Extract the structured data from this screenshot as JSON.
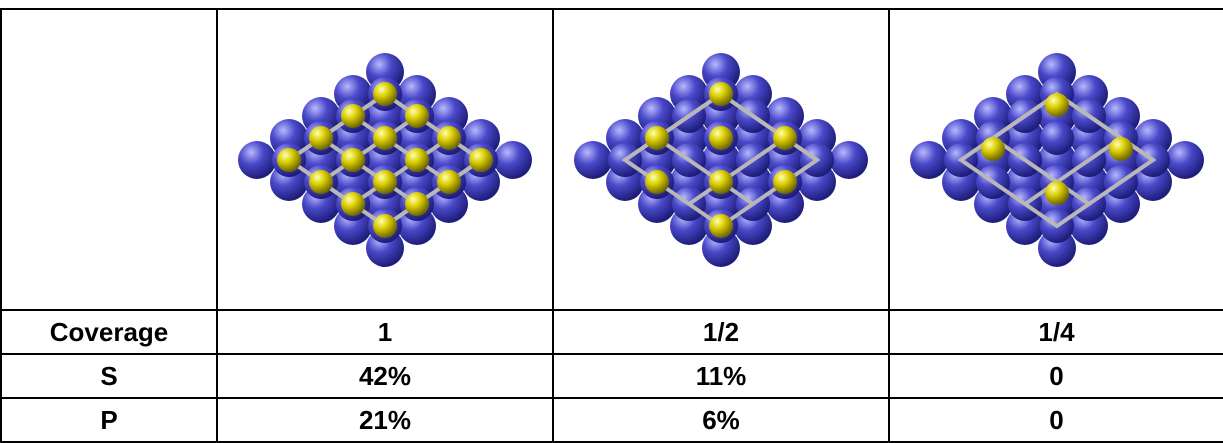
{
  "table": {
    "coverage_label": "Coverage",
    "coverages": [
      "1",
      "1/2",
      "1/4"
    ],
    "rows": [
      {
        "label": "S",
        "values": [
          "42%",
          "11%",
          "0"
        ]
      },
      {
        "label": "P",
        "values": [
          "21%",
          "6%",
          "0"
        ]
      }
    ]
  },
  "models": [
    {
      "coverage": "1",
      "adsorbate_pattern": "full"
    },
    {
      "coverage": "1/2",
      "adsorbate_pattern": "half"
    },
    {
      "coverage": "1/4",
      "adsorbate_pattern": "quarter"
    }
  ],
  "colors": {
    "substrate_atom": "#4a49c9",
    "adsorbate_atom": "#d9cc00",
    "cell_grid": "#b8b8b8",
    "border": "#000000"
  }
}
